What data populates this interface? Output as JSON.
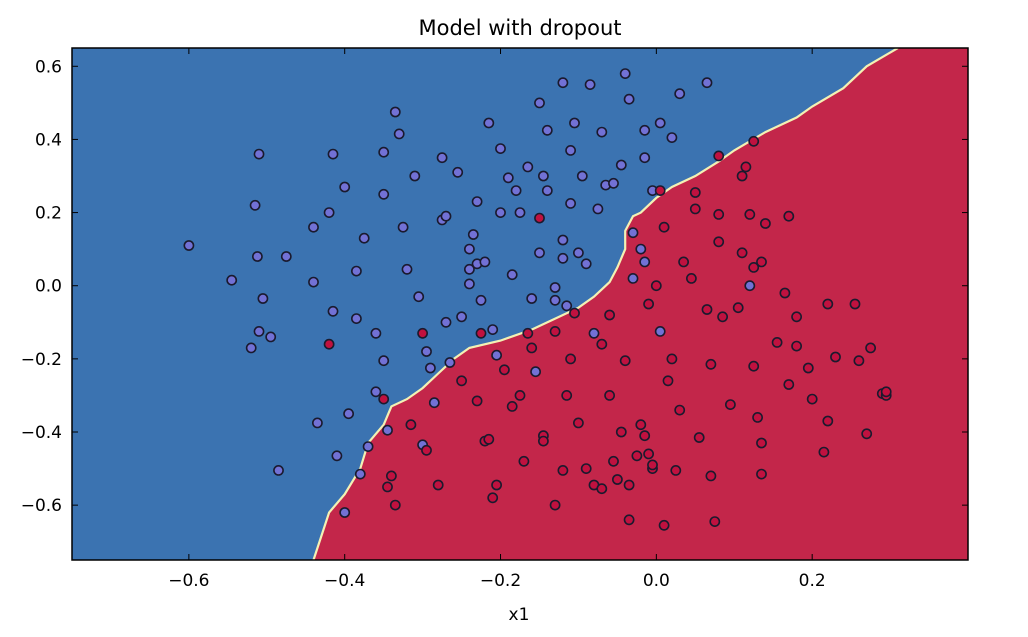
{
  "chart_data": {
    "type": "scatter",
    "title": "Model with dropout",
    "xlabel": "x1",
    "ylabel": "",
    "xlim": [
      -0.75,
      0.4
    ],
    "ylim": [
      -0.75,
      0.65
    ],
    "xticks": [
      "−0.6",
      "−0.4",
      "−0.2",
      "0.0",
      "0.2"
    ],
    "yticks": [
      "−0.6",
      "−0.4",
      "−0.2",
      "0.0",
      "0.2",
      "0.4",
      "0.6"
    ],
    "grid": false,
    "colors": {
      "region_blue": "#3b73b1",
      "region_red": "#c3264a",
      "boundary": "#f3f1b4",
      "point_blue": "#7271d5",
      "point_red": "#c0113f",
      "point_edge": "#1a1a2e"
    },
    "decision_boundary": [
      [
        -0.44,
        -0.75
      ],
      [
        -0.42,
        -0.62
      ],
      [
        -0.4,
        -0.57
      ],
      [
        -0.38,
        -0.5
      ],
      [
        -0.37,
        -0.43
      ],
      [
        -0.35,
        -0.38
      ],
      [
        -0.34,
        -0.33
      ],
      [
        -0.32,
        -0.31
      ],
      [
        -0.3,
        -0.28
      ],
      [
        -0.28,
        -0.24
      ],
      [
        -0.26,
        -0.2
      ],
      [
        -0.24,
        -0.17
      ],
      [
        -0.2,
        -0.15
      ],
      [
        -0.16,
        -0.12
      ],
      [
        -0.12,
        -0.08
      ],
      [
        -0.1,
        -0.06
      ],
      [
        -0.08,
        -0.03
      ],
      [
        -0.06,
        0.01
      ],
      [
        -0.05,
        0.05
      ],
      [
        -0.04,
        0.1
      ],
      [
        -0.04,
        0.15
      ],
      [
        -0.03,
        0.19
      ],
      [
        -0.02,
        0.2
      ],
      [
        0.0,
        0.24
      ],
      [
        0.02,
        0.27
      ],
      [
        0.05,
        0.3
      ],
      [
        0.08,
        0.34
      ],
      [
        0.1,
        0.37
      ],
      [
        0.14,
        0.42
      ],
      [
        0.18,
        0.46
      ],
      [
        0.2,
        0.49
      ],
      [
        0.24,
        0.54
      ],
      [
        0.27,
        0.6
      ],
      [
        0.31,
        0.65
      ]
    ],
    "series": [
      {
        "name": "",
        "color": "#7271d5",
        "points": [
          [
            -0.6,
            0.11
          ],
          [
            -0.545,
            0.015
          ],
          [
            -0.51,
            0.36
          ],
          [
            -0.515,
            0.22
          ],
          [
            -0.512,
            0.08
          ],
          [
            -0.51,
            -0.125
          ],
          [
            -0.505,
            -0.035
          ],
          [
            -0.495,
            -0.14
          ],
          [
            -0.52,
            -0.17
          ],
          [
            -0.475,
            0.08
          ],
          [
            -0.485,
            -0.505
          ],
          [
            -0.44,
            0.01
          ],
          [
            -0.435,
            -0.375
          ],
          [
            -0.44,
            0.16
          ],
          [
            -0.42,
            0.2
          ],
          [
            -0.415,
            0.36
          ],
          [
            -0.4,
            0.27
          ],
          [
            -0.415,
            -0.07
          ],
          [
            -0.41,
            -0.465
          ],
          [
            -0.4,
            -0.62
          ],
          [
            -0.395,
            -0.35
          ],
          [
            -0.38,
            -0.515
          ],
          [
            -0.385,
            0.04
          ],
          [
            -0.385,
            -0.09
          ],
          [
            -0.375,
            0.13
          ],
          [
            -0.37,
            -0.44
          ],
          [
            -0.36,
            -0.29
          ],
          [
            -0.36,
            -0.13
          ],
          [
            -0.35,
            0.365
          ],
          [
            -0.35,
            0.25
          ],
          [
            -0.35,
            -0.205
          ],
          [
            -0.345,
            -0.395
          ],
          [
            -0.335,
            0.475
          ],
          [
            -0.33,
            0.415
          ],
          [
            -0.325,
            0.16
          ],
          [
            -0.32,
            0.045
          ],
          [
            -0.31,
            0.3
          ],
          [
            -0.305,
            -0.03
          ],
          [
            -0.3,
            -0.435
          ],
          [
            -0.295,
            -0.18
          ],
          [
            -0.29,
            -0.225
          ],
          [
            -0.285,
            -0.32
          ],
          [
            -0.275,
            0.18
          ],
          [
            -0.27,
            0.19
          ],
          [
            -0.275,
            0.35
          ],
          [
            -0.27,
            -0.1
          ],
          [
            -0.265,
            -0.21
          ],
          [
            -0.255,
            0.31
          ],
          [
            -0.25,
            -0.085
          ],
          [
            -0.24,
            0.005
          ],
          [
            -0.24,
            0.045
          ],
          [
            -0.24,
            0.1
          ],
          [
            -0.235,
            0.14
          ],
          [
            -0.23,
            0.23
          ],
          [
            -0.23,
            0.06
          ],
          [
            -0.225,
            -0.04
          ],
          [
            -0.22,
            0.065
          ],
          [
            -0.215,
            0.445
          ],
          [
            -0.21,
            -0.12
          ],
          [
            -0.205,
            -0.19
          ],
          [
            -0.2,
            0.375
          ],
          [
            -0.2,
            0.2
          ],
          [
            -0.19,
            0.295
          ],
          [
            -0.185,
            0.03
          ],
          [
            -0.18,
            0.26
          ],
          [
            -0.175,
            0.2
          ],
          [
            -0.165,
            0.325
          ],
          [
            -0.16,
            -0.035
          ],
          [
            -0.15,
            0.09
          ],
          [
            -0.145,
            0.3
          ],
          [
            -0.15,
            0.5
          ],
          [
            -0.14,
            0.26
          ],
          [
            -0.14,
            0.425
          ],
          [
            -0.13,
            -0.005
          ],
          [
            -0.13,
            -0.04
          ],
          [
            -0.12,
            0.555
          ],
          [
            -0.12,
            0.125
          ],
          [
            -0.12,
            0.075
          ],
          [
            -0.115,
            -0.055
          ],
          [
            -0.11,
            0.37
          ],
          [
            -0.11,
            0.225
          ],
          [
            -0.105,
            0.445
          ],
          [
            -0.1,
            0.09
          ],
          [
            -0.095,
            0.3
          ],
          [
            -0.09,
            0.06
          ],
          [
            -0.085,
            0.55
          ],
          [
            -0.075,
            0.21
          ],
          [
            -0.07,
            0.42
          ],
          [
            -0.065,
            0.275
          ],
          [
            -0.055,
            0.28
          ],
          [
            -0.045,
            0.33
          ],
          [
            -0.04,
            0.58
          ],
          [
            -0.035,
            0.51
          ],
          [
            -0.03,
            0.145
          ],
          [
            -0.02,
            0.1
          ],
          [
            -0.015,
            0.35
          ],
          [
            -0.015,
            0.425
          ],
          [
            -0.005,
            0.26
          ],
          [
            -0.015,
            0.065
          ],
          [
            -0.03,
            0.02
          ],
          [
            0.005,
            0.445
          ],
          [
            0.02,
            0.405
          ],
          [
            0.03,
            0.525
          ],
          [
            0.065,
            0.555
          ],
          [
            -0.08,
            -0.13
          ],
          [
            -0.155,
            -0.235
          ],
          [
            0.005,
            -0.125
          ],
          [
            0.12,
            0.0
          ]
        ]
      },
      {
        "name": "",
        "color": "#c0113f",
        "points": [
          [
            -0.42,
            -0.16
          ],
          [
            -0.35,
            -0.31
          ],
          [
            -0.335,
            -0.6
          ],
          [
            -0.3,
            -0.13
          ],
          [
            -0.295,
            -0.45
          ],
          [
            -0.34,
            -0.52
          ],
          [
            -0.345,
            -0.55
          ],
          [
            -0.315,
            -0.38
          ],
          [
            -0.28,
            -0.545
          ],
          [
            -0.25,
            -0.26
          ],
          [
            -0.23,
            -0.315
          ],
          [
            -0.225,
            -0.13
          ],
          [
            -0.22,
            -0.425
          ],
          [
            -0.215,
            -0.42
          ],
          [
            -0.21,
            -0.58
          ],
          [
            -0.205,
            -0.545
          ],
          [
            -0.195,
            -0.23
          ],
          [
            -0.185,
            -0.33
          ],
          [
            -0.175,
            -0.3
          ],
          [
            -0.17,
            -0.48
          ],
          [
            -0.165,
            -0.13
          ],
          [
            -0.16,
            -0.17
          ],
          [
            -0.15,
            0.185
          ],
          [
            -0.145,
            -0.41
          ],
          [
            -0.13,
            -0.125
          ],
          [
            -0.13,
            -0.6
          ],
          [
            -0.12,
            -0.505
          ],
          [
            -0.115,
            -0.3
          ],
          [
            -0.11,
            -0.2
          ],
          [
            -0.105,
            -0.075
          ],
          [
            -0.1,
            -0.375
          ],
          [
            -0.09,
            -0.5
          ],
          [
            -0.08,
            -0.545
          ],
          [
            -0.07,
            -0.555
          ],
          [
            -0.07,
            -0.16
          ],
          [
            -0.06,
            -0.08
          ],
          [
            -0.06,
            -0.3
          ],
          [
            -0.055,
            -0.48
          ],
          [
            -0.05,
            -0.53
          ],
          [
            -0.045,
            -0.4
          ],
          [
            -0.04,
            -0.205
          ],
          [
            -0.035,
            -0.64
          ],
          [
            -0.025,
            -0.465
          ],
          [
            -0.02,
            -0.38
          ],
          [
            -0.015,
            -0.41
          ],
          [
            -0.01,
            -0.46
          ],
          [
            -0.005,
            -0.5
          ],
          [
            -0.005,
            -0.49
          ],
          [
            0.0,
            0.0
          ],
          [
            -0.01,
            -0.05
          ],
          [
            0.005,
            0.26
          ],
          [
            0.01,
            0.16
          ],
          [
            0.01,
            -0.655
          ],
          [
            0.015,
            -0.26
          ],
          [
            0.02,
            -0.2
          ],
          [
            0.025,
            -0.505
          ],
          [
            0.03,
            -0.34
          ],
          [
            0.035,
            0.065
          ],
          [
            0.045,
            0.02
          ],
          [
            0.05,
            0.21
          ],
          [
            0.05,
            0.255
          ],
          [
            0.055,
            -0.415
          ],
          [
            0.065,
            -0.065
          ],
          [
            0.07,
            -0.52
          ],
          [
            0.07,
            -0.215
          ],
          [
            0.075,
            -0.645
          ],
          [
            0.08,
            0.195
          ],
          [
            0.08,
            0.12
          ],
          [
            0.08,
            0.355
          ],
          [
            0.085,
            -0.085
          ],
          [
            0.095,
            -0.325
          ],
          [
            0.105,
            -0.06
          ],
          [
            0.11,
            0.09
          ],
          [
            0.11,
            0.3
          ],
          [
            0.115,
            0.325
          ],
          [
            0.12,
            0.195
          ],
          [
            0.125,
            0.05
          ],
          [
            0.125,
            -0.22
          ],
          [
            0.125,
            0.395
          ],
          [
            0.13,
            -0.36
          ],
          [
            0.135,
            -0.43
          ],
          [
            0.135,
            0.065
          ],
          [
            0.135,
            -0.515
          ],
          [
            0.14,
            0.17
          ],
          [
            0.155,
            -0.155
          ],
          [
            0.165,
            -0.02
          ],
          [
            0.17,
            0.19
          ],
          [
            0.17,
            -0.27
          ],
          [
            0.18,
            -0.165
          ],
          [
            0.18,
            -0.085
          ],
          [
            0.195,
            -0.225
          ],
          [
            0.2,
            -0.31
          ],
          [
            0.215,
            -0.455
          ],
          [
            0.22,
            -0.37
          ],
          [
            0.22,
            -0.05
          ],
          [
            0.23,
            -0.195
          ],
          [
            0.255,
            -0.05
          ],
          [
            0.26,
            -0.205
          ],
          [
            0.27,
            -0.405
          ],
          [
            0.275,
            -0.17
          ],
          [
            0.29,
            -0.295
          ],
          [
            0.295,
            -0.3
          ],
          [
            0.295,
            -0.29
          ],
          [
            -0.145,
            -0.425
          ],
          [
            -0.035,
            -0.545
          ]
        ]
      }
    ]
  }
}
